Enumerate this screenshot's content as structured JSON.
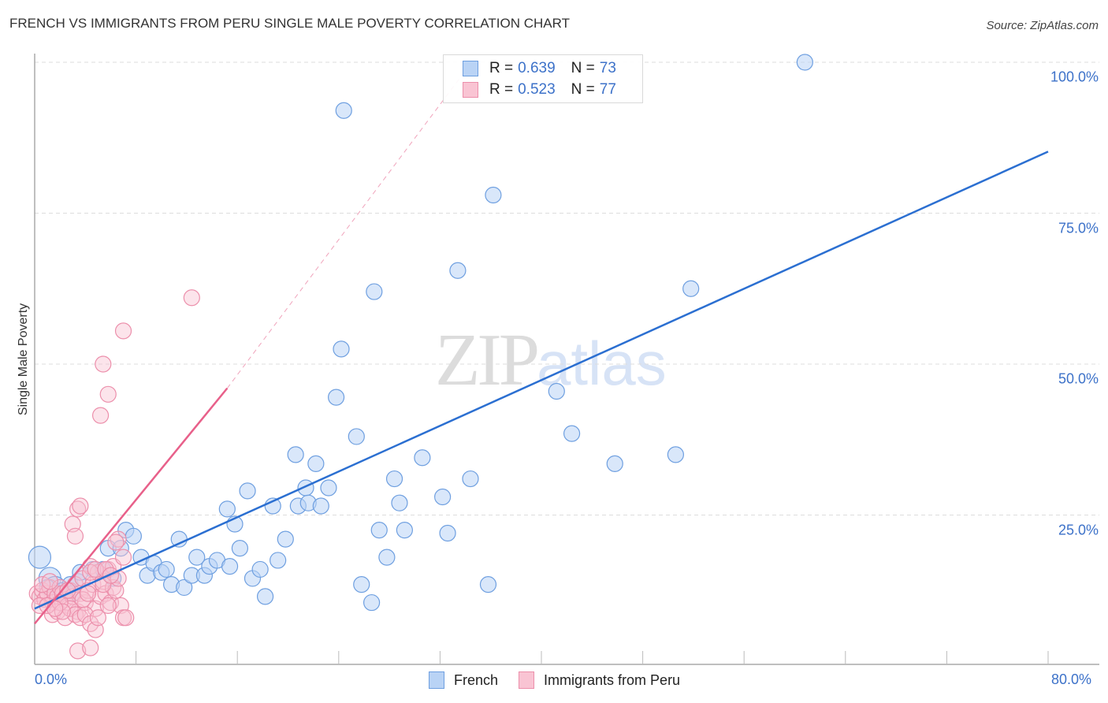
{
  "header": {
    "title": "FRENCH VS IMMIGRANTS FROM PERU SINGLE MALE POVERTY CORRELATION CHART",
    "source": "Source: ZipAtlas.com"
  },
  "legend": {
    "series": [
      {
        "name": "French",
        "r_label": "R = ",
        "r_value": "0.639",
        "n_label": "N = ",
        "n_value": "73",
        "fill": "#b9d3f5",
        "stroke": "#6e9fe0"
      },
      {
        "name": "Immigrants from Peru",
        "r_label": "R = ",
        "r_value": "0.523",
        "n_label": "N = ",
        "n_value": "77",
        "fill": "#f9c4d3",
        "stroke": "#ec8fab"
      }
    ]
  },
  "watermark": {
    "zip": "ZIP",
    "atlas": "atlas"
  },
  "colors": {
    "french_line": "#2b6fd1",
    "peru_line": "#e8608a",
    "tick_text": "#3d72c9",
    "grid": "#dddddd"
  },
  "chart_data": {
    "type": "scatter",
    "title": "FRENCH VS IMMIGRANTS FROM PERU SINGLE MALE POVERTY CORRELATION CHART",
    "xlabel": "",
    "ylabel": "Single Male Poverty",
    "xlim": [
      0,
      80
    ],
    "ylim": [
      0,
      100
    ],
    "x_tick_labels": [
      "0.0%",
      "80.0%"
    ],
    "y_tick_labels": [
      "100.0%",
      "75.0%",
      "50.0%",
      "25.0%"
    ],
    "y_ticks": [
      100,
      75,
      50,
      25
    ],
    "grid": true,
    "legend_position": "top-center",
    "series": [
      {
        "name": "French",
        "r": 0.639,
        "n": 73,
        "trend": {
          "x0": 0,
          "y0": 9.5,
          "x1": 80,
          "y1": 85.2
        },
        "points": [
          [
            0.4,
            18.0
          ],
          [
            1.2,
            14.5
          ],
          [
            1.6,
            13.0
          ],
          [
            2.2,
            12.5
          ],
          [
            2.8,
            13.5
          ],
          [
            3.4,
            14.0
          ],
          [
            3.0,
            12.0
          ],
          [
            4.6,
            16.0
          ],
          [
            5.4,
            16.0
          ],
          [
            5.8,
            19.5
          ],
          [
            6.8,
            19.5
          ],
          [
            7.2,
            22.5
          ],
          [
            7.8,
            21.5
          ],
          [
            8.4,
            18.0
          ],
          [
            8.9,
            15.0
          ],
          [
            9.4,
            17.0
          ],
          [
            10.0,
            15.5
          ],
          [
            10.4,
            16.0
          ],
          [
            10.8,
            13.5
          ],
          [
            11.4,
            21.0
          ],
          [
            11.8,
            13.0
          ],
          [
            12.4,
            15.0
          ],
          [
            12.8,
            18.0
          ],
          [
            13.4,
            15.0
          ],
          [
            13.8,
            16.5
          ],
          [
            14.4,
            17.5
          ],
          [
            15.2,
            26.0
          ],
          [
            15.4,
            16.5
          ],
          [
            15.8,
            23.5
          ],
          [
            16.2,
            19.5
          ],
          [
            16.8,
            29.0
          ],
          [
            17.2,
            14.5
          ],
          [
            17.8,
            16.0
          ],
          [
            18.2,
            11.5
          ],
          [
            18.8,
            26.5
          ],
          [
            19.2,
            17.5
          ],
          [
            19.8,
            21.0
          ],
          [
            20.6,
            35.0
          ],
          [
            20.8,
            26.5
          ],
          [
            21.4,
            29.5
          ],
          [
            21.6,
            27.0
          ],
          [
            22.2,
            33.5
          ],
          [
            22.6,
            26.5
          ],
          [
            23.2,
            29.5
          ],
          [
            23.8,
            44.5
          ],
          [
            24.2,
            52.5
          ],
          [
            24.4,
            92.0
          ],
          [
            25.4,
            38.0
          ],
          [
            25.8,
            13.5
          ],
          [
            26.6,
            10.5
          ],
          [
            26.8,
            62.0
          ],
          [
            27.2,
            22.5
          ],
          [
            27.8,
            18.0
          ],
          [
            28.4,
            31.0
          ],
          [
            28.8,
            27.0
          ],
          [
            29.2,
            22.5
          ],
          [
            30.6,
            34.5
          ],
          [
            32.2,
            28.0
          ],
          [
            32.6,
            22.0
          ],
          [
            33.4,
            65.5
          ],
          [
            34.4,
            31.0
          ],
          [
            35.8,
            13.5
          ],
          [
            36.2,
            78.0
          ],
          [
            41.2,
            45.5
          ],
          [
            42.4,
            38.5
          ],
          [
            45.8,
            33.5
          ],
          [
            50.6,
            35.0
          ],
          [
            51.8,
            62.5
          ],
          [
            60.8,
            100.0
          ],
          [
            2.0,
            12.0
          ],
          [
            1.0,
            13.0
          ],
          [
            6.2,
            14.5
          ],
          [
            3.6,
            15.5
          ]
        ]
      },
      {
        "name": "Immigrants from Peru",
        "r": 0.523,
        "n": 77,
        "trend": {
          "x0": 0,
          "y0": 7.0,
          "x1": 15.2,
          "y1": 46.0
        },
        "trend_dashed_extension": {
          "x0": 15.2,
          "y0": 46.0,
          "x1": 34.5,
          "y1": 100.0
        },
        "points": [
          [
            0.2,
            12.0
          ],
          [
            0.4,
            11.5
          ],
          [
            0.6,
            12.5
          ],
          [
            0.8,
            11.0
          ],
          [
            1.0,
            12.0
          ],
          [
            1.2,
            13.0
          ],
          [
            1.4,
            10.5
          ],
          [
            1.6,
            12.0
          ],
          [
            1.8,
            11.5
          ],
          [
            2.0,
            13.0
          ],
          [
            2.2,
            12.0
          ],
          [
            2.4,
            11.0
          ],
          [
            2.6,
            10.0
          ],
          [
            2.8,
            12.5
          ],
          [
            3.0,
            11.5
          ],
          [
            3.2,
            13.5
          ],
          [
            3.4,
            9.0
          ],
          [
            3.6,
            12.0
          ],
          [
            3.8,
            14.5
          ],
          [
            4.0,
            10.5
          ],
          [
            4.2,
            12.5
          ],
          [
            4.4,
            16.5
          ],
          [
            4.6,
            13.5
          ],
          [
            4.8,
            9.5
          ],
          [
            5.0,
            15.5
          ],
          [
            5.2,
            11.5
          ],
          [
            5.4,
            14.0
          ],
          [
            5.6,
            12.0
          ],
          [
            5.8,
            16.0
          ],
          [
            6.0,
            10.5
          ],
          [
            6.2,
            13.0
          ],
          [
            6.4,
            12.5
          ],
          [
            6.6,
            14.5
          ],
          [
            6.8,
            10.0
          ],
          [
            7.0,
            8.0
          ],
          [
            1.4,
            8.5
          ],
          [
            1.8,
            9.0
          ],
          [
            2.4,
            8.0
          ],
          [
            2.8,
            9.5
          ],
          [
            3.2,
            8.5
          ],
          [
            3.6,
            8.0
          ],
          [
            4.0,
            8.5
          ],
          [
            4.4,
            7.0
          ],
          [
            4.8,
            6.0
          ],
          [
            5.0,
            8.0
          ],
          [
            3.4,
            2.5
          ],
          [
            4.4,
            3.0
          ],
          [
            7.2,
            8.0
          ],
          [
            5.8,
            10.0
          ],
          [
            6.2,
            16.5
          ],
          [
            6.6,
            21.0
          ],
          [
            7.0,
            18.0
          ],
          [
            3.0,
            23.5
          ],
          [
            3.2,
            21.5
          ],
          [
            3.4,
            26.0
          ],
          [
            3.6,
            26.5
          ],
          [
            4.4,
            15.5
          ],
          [
            4.8,
            16.0
          ],
          [
            0.6,
            13.5
          ],
          [
            0.4,
            10.0
          ],
          [
            1.0,
            10.0
          ],
          [
            1.2,
            14.0
          ],
          [
            2.0,
            10.5
          ],
          [
            2.2,
            9.0
          ],
          [
            5.4,
            13.5
          ],
          [
            5.6,
            16.0
          ],
          [
            6.0,
            15.0
          ],
          [
            6.4,
            20.5
          ],
          [
            5.2,
            41.5
          ],
          [
            5.8,
            45.0
          ],
          [
            5.4,
            50.0
          ],
          [
            7.0,
            55.5
          ],
          [
            12.4,
            61.0
          ],
          [
            2.6,
            12.5
          ],
          [
            3.8,
            11.0
          ],
          [
            4.2,
            12.0
          ],
          [
            1.6,
            9.5
          ]
        ]
      }
    ]
  }
}
